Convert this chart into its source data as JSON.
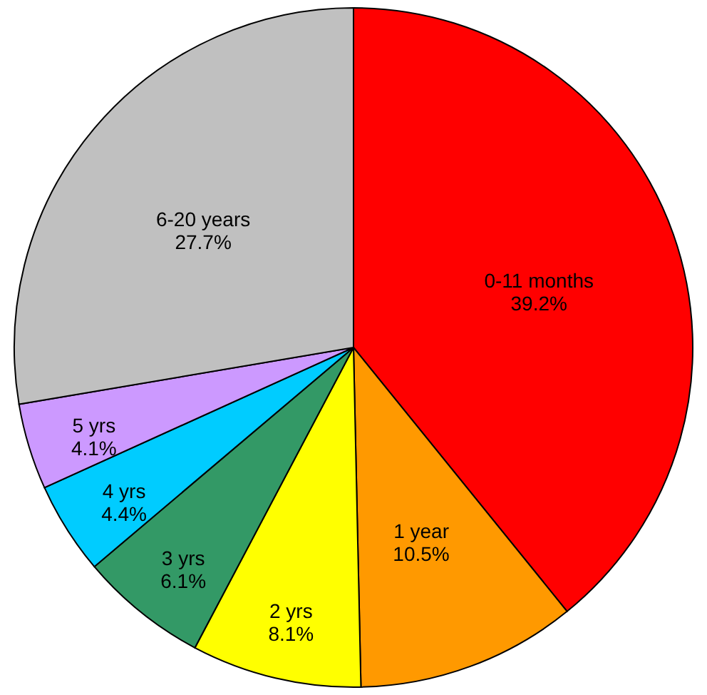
{
  "chart_data": {
    "type": "pie",
    "categories": [
      "0-11 months",
      "1 year",
      "2 yrs",
      "3 yrs",
      "4 yrs",
      "5 yrs",
      "6-20 years"
    ],
    "values": [
      39.2,
      10.5,
      8.1,
      6.1,
      4.4,
      4.1,
      27.7
    ],
    "value_labels": [
      "39.2%",
      "10.5%",
      "8.1%",
      "6.1%",
      "4.4%",
      "4.1%",
      "27.7%"
    ],
    "colors": [
      "#ff0000",
      "#ff9900",
      "#ffff00",
      "#339966",
      "#00ccff",
      "#cc99ff",
      "#c0c0c0"
    ],
    "legend": false
  }
}
